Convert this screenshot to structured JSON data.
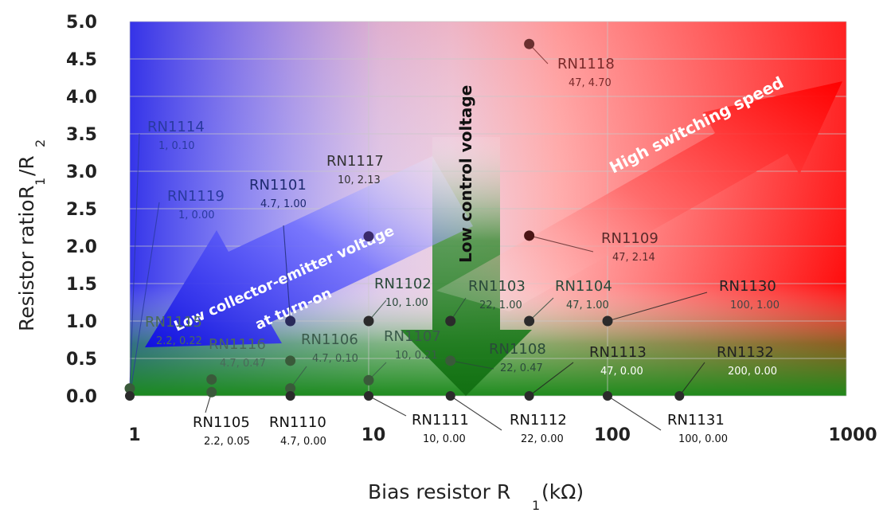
{
  "chart_data": {
    "type": "scatter",
    "title": "",
    "xlabel": "Bias resistor R",
    "xlabel_sub": "1",
    "xlabel_unit": " (kΩ)",
    "ylabel": "Resistor ratio",
    "ylabel_math": "R",
    "ylabel_sub1": "1",
    "ylabel_slash": "/R",
    "ylabel_sub2": "2",
    "xscale": "log",
    "xlim": [
      1,
      1000
    ],
    "ylim": [
      0,
      5
    ],
    "xticks": [
      "1",
      "10",
      "100",
      "1000"
    ],
    "yticks": [
      "0.0",
      "0.5",
      "1.0",
      "1.5",
      "2.0",
      "2.5",
      "3.0",
      "3.5",
      "4.0",
      "4.5",
      "5.0"
    ],
    "grid": true,
    "points": [
      {
        "name": "RN1114",
        "value": "1, 0.10",
        "x": 1,
        "y": 0.1
      },
      {
        "name": "RN1119",
        "value": "1, 0.00",
        "x": 1,
        "y": 0.0
      },
      {
        "name": "RN1101",
        "value": "4.7, 1.00",
        "x": 4.7,
        "y": 1.0
      },
      {
        "name": "RN1117",
        "value": "10, 2.13",
        "x": 10,
        "y": 2.13
      },
      {
        "name": "RN1118",
        "value": "47, 4.70",
        "x": 47,
        "y": 4.7
      },
      {
        "name": "RN1109",
        "value": "47, 2.14",
        "x": 47,
        "y": 2.14
      },
      {
        "name": "RN1102",
        "value": "10, 1.00",
        "x": 10,
        "y": 1.0
      },
      {
        "name": "RN1103",
        "value": "22, 1.00",
        "x": 22,
        "y": 1.0
      },
      {
        "name": "RN1104",
        "value": "47, 1.00",
        "x": 47,
        "y": 1.0
      },
      {
        "name": "RN1130",
        "value": "100, 1.00",
        "x": 100,
        "y": 1.0
      },
      {
        "name": "RN1115",
        "value": "2.2, 0.22",
        "x": 2.2,
        "y": 0.22
      },
      {
        "name": "RN1116",
        "value": "4.7, 0.47",
        "x": 4.7,
        "y": 0.47
      },
      {
        "name": "RN1106",
        "value": "4.7, 0.10",
        "x": 4.7,
        "y": 0.1
      },
      {
        "name": "RN1107",
        "value": "10, 0.21",
        "x": 10,
        "y": 0.21
      },
      {
        "name": "RN1108",
        "value": "22, 0.47",
        "x": 22,
        "y": 0.47
      },
      {
        "name": "RN1113",
        "value": "47, 0.00",
        "x": 47,
        "y": 0.0
      },
      {
        "name": "RN1132",
        "value": "200, 0.00",
        "x": 200,
        "y": 0.0
      },
      {
        "name": "RN1105",
        "value": "2.2, 0.05",
        "x": 2.2,
        "y": 0.05
      },
      {
        "name": "RN1110",
        "value": "4.7, 0.00",
        "x": 4.7,
        "y": 0.0
      },
      {
        "name": "RN1111",
        "value": "10, 0.00",
        "x": 10,
        "y": 0.0
      },
      {
        "name": "RN1112",
        "value": "22, 0.00",
        "x": 22,
        "y": 0.0
      },
      {
        "name": "RN1131",
        "value": "100, 0.00",
        "x": 100,
        "y": 0.0
      }
    ],
    "annotations": [
      {
        "text": "High switching speed",
        "color": "#ff0000"
      },
      {
        "text": "Low control voltage",
        "color": "#1b8a1b"
      },
      {
        "text": "Low collector-emitter voltage",
        "text2": "at turn-on",
        "color": "#2323e6"
      }
    ]
  }
}
